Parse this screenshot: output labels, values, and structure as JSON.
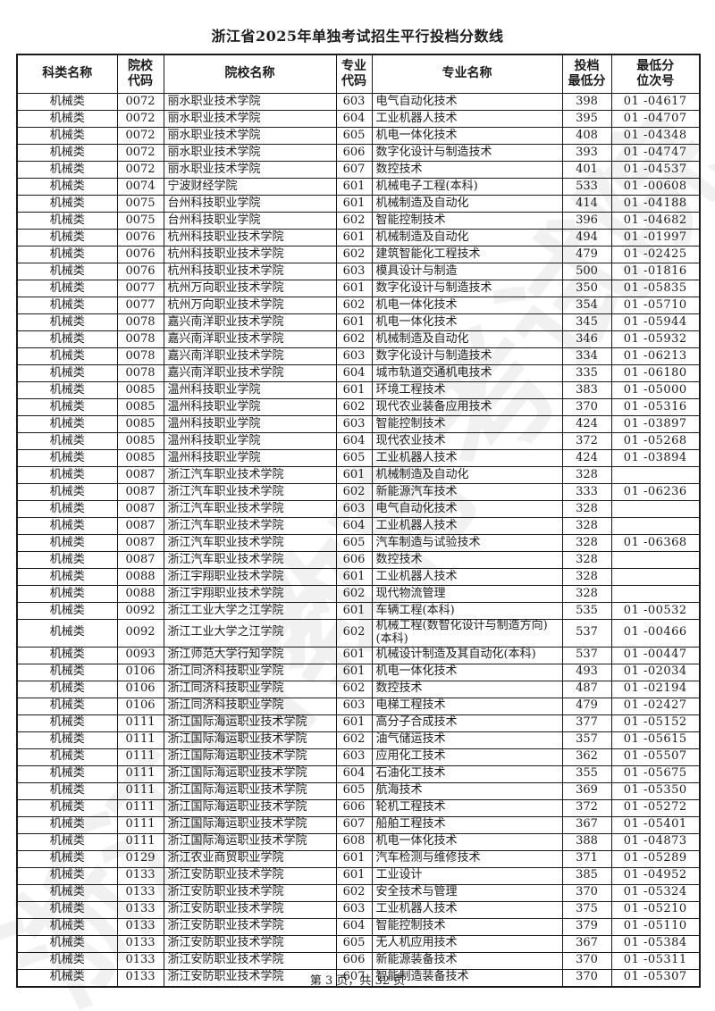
{
  "page": {
    "title": "浙江省2025年单独考试招生平行投档分数线",
    "footer": "第 3 页，共 32 页",
    "watermark": "浙江省教育考试院"
  },
  "table": {
    "headers": [
      "科类名称",
      "院校\n代码",
      "院校名称",
      "专业\n代码",
      "专业名称",
      "投档\n最低分",
      "最低分\n位次号"
    ],
    "rows": [
      [
        "机械类",
        "0072",
        "丽水职业技术学院",
        "603",
        "电气自动化技术",
        "398",
        "01 -04617"
      ],
      [
        "机械类",
        "0072",
        "丽水职业技术学院",
        "604",
        "工业机器人技术",
        "395",
        "01 -04707"
      ],
      [
        "机械类",
        "0072",
        "丽水职业技术学院",
        "605",
        "机电一体化技术",
        "408",
        "01 -04348"
      ],
      [
        "机械类",
        "0072",
        "丽水职业技术学院",
        "606",
        "数字化设计与制造技术",
        "393",
        "01 -04747"
      ],
      [
        "机械类",
        "0072",
        "丽水职业技术学院",
        "607",
        "数控技术",
        "401",
        "01 -04537"
      ],
      [
        "机械类",
        "0074",
        "宁波财经学院",
        "601",
        "机械电子工程(本科)",
        "533",
        "01 -00608"
      ],
      [
        "机械类",
        "0075",
        "台州科技职业学院",
        "601",
        "机械制造及自动化",
        "414",
        "01 -04188"
      ],
      [
        "机械类",
        "0075",
        "台州科技职业学院",
        "602",
        "智能控制技术",
        "396",
        "01 -04682"
      ],
      [
        "机械类",
        "0076",
        "杭州科技职业技术学院",
        "601",
        "机械制造及自动化",
        "494",
        "01 -01997"
      ],
      [
        "机械类",
        "0076",
        "杭州科技职业技术学院",
        "602",
        "建筑智能化工程技术",
        "479",
        "01 -02425"
      ],
      [
        "机械类",
        "0076",
        "杭州科技职业技术学院",
        "603",
        "模具设计与制造",
        "500",
        "01 -01816"
      ],
      [
        "机械类",
        "0077",
        "杭州万向职业技术学院",
        "601",
        "数字化设计与制造技术",
        "350",
        "01 -05835"
      ],
      [
        "机械类",
        "0077",
        "杭州万向职业技术学院",
        "602",
        "机电一体化技术",
        "354",
        "01 -05710"
      ],
      [
        "机械类",
        "0078",
        "嘉兴南洋职业技术学院",
        "601",
        "机电一体化技术",
        "345",
        "01 -05944"
      ],
      [
        "机械类",
        "0078",
        "嘉兴南洋职业技术学院",
        "602",
        "机械制造及自动化",
        "346",
        "01 -05932"
      ],
      [
        "机械类",
        "0078",
        "嘉兴南洋职业技术学院",
        "603",
        "数字化设计与制造技术",
        "334",
        "01 -06213"
      ],
      [
        "机械类",
        "0078",
        "嘉兴南洋职业技术学院",
        "604",
        "城市轨道交通机电技术",
        "335",
        "01 -06180"
      ],
      [
        "机械类",
        "0085",
        "温州科技职业学院",
        "601",
        "环境工程技术",
        "383",
        "01 -05000"
      ],
      [
        "机械类",
        "0085",
        "温州科技职业学院",
        "602",
        "现代农业装备应用技术",
        "370",
        "01 -05316"
      ],
      [
        "机械类",
        "0085",
        "温州科技职业学院",
        "603",
        "智能控制技术",
        "424",
        "01 -03897"
      ],
      [
        "机械类",
        "0085",
        "温州科技职业学院",
        "604",
        "现代农业技术",
        "372",
        "01 -05268"
      ],
      [
        "机械类",
        "0085",
        "温州科技职业学院",
        "605",
        "工业机器人技术",
        "424",
        "01 -03894"
      ],
      [
        "机械类",
        "0087",
        "浙江汽车职业技术学院",
        "601",
        "机械制造及自动化",
        "328",
        ""
      ],
      [
        "机械类",
        "0087",
        "浙江汽车职业技术学院",
        "602",
        "新能源汽车技术",
        "333",
        "01 -06236"
      ],
      [
        "机械类",
        "0087",
        "浙江汽车职业技术学院",
        "603",
        "电气自动化技术",
        "328",
        ""
      ],
      [
        "机械类",
        "0087",
        "浙江汽车职业技术学院",
        "604",
        "工业机器人技术",
        "328",
        ""
      ],
      [
        "机械类",
        "0087",
        "浙江汽车职业技术学院",
        "605",
        "汽车制造与试验技术",
        "328",
        "01 -06368"
      ],
      [
        "机械类",
        "0087",
        "浙江汽车职业技术学院",
        "606",
        "数控技术",
        "328",
        ""
      ],
      [
        "机械类",
        "0088",
        "浙江宇翔职业技术学院",
        "601",
        "工业机器人技术",
        "328",
        ""
      ],
      [
        "机械类",
        "0088",
        "浙江宇翔职业技术学院",
        "602",
        "现代物流管理",
        "328",
        ""
      ],
      [
        "机械类",
        "0092",
        "浙江工业大学之江学院",
        "601",
        "车辆工程(本科)",
        "535",
        "01 -00532"
      ],
      [
        "机械类",
        "0092",
        "浙江工业大学之江学院",
        "602",
        "机械工程(数智化设计与制造方向)(本科)",
        "537",
        "01 -00466"
      ],
      [
        "机械类",
        "0093",
        "浙江师范大学行知学院",
        "601",
        "机械设计制造及其自动化(本科)",
        "537",
        "01 -00447"
      ],
      [
        "机械类",
        "0106",
        "浙江同济科技职业学院",
        "601",
        "机电一体化技术",
        "493",
        "01 -02034"
      ],
      [
        "机械类",
        "0106",
        "浙江同济科技职业学院",
        "602",
        "数控技术",
        "487",
        "01 -02194"
      ],
      [
        "机械类",
        "0106",
        "浙江同济科技职业学院",
        "603",
        "电梯工程技术",
        "479",
        "01 -02427"
      ],
      [
        "机械类",
        "0111",
        "浙江国际海运职业技术学院",
        "601",
        "高分子合成技术",
        "377",
        "01 -05152"
      ],
      [
        "机械类",
        "0111",
        "浙江国际海运职业技术学院",
        "602",
        "油气储运技术",
        "357",
        "01 -05615"
      ],
      [
        "机械类",
        "0111",
        "浙江国际海运职业技术学院",
        "603",
        "应用化工技术",
        "362",
        "01 -05507"
      ],
      [
        "机械类",
        "0111",
        "浙江国际海运职业技术学院",
        "604",
        "石油化工技术",
        "355",
        "01 -05675"
      ],
      [
        "机械类",
        "0111",
        "浙江国际海运职业技术学院",
        "605",
        "航海技术",
        "369",
        "01 -05350"
      ],
      [
        "机械类",
        "0111",
        "浙江国际海运职业技术学院",
        "606",
        "轮机工程技术",
        "372",
        "01 -05272"
      ],
      [
        "机械类",
        "0111",
        "浙江国际海运职业技术学院",
        "607",
        "船舶工程技术",
        "367",
        "01 -05401"
      ],
      [
        "机械类",
        "0111",
        "浙江国际海运职业技术学院",
        "608",
        "机电一体化技术",
        "388",
        "01 -04873"
      ],
      [
        "机械类",
        "0129",
        "浙江农业商贸职业学院",
        "601",
        "汽车检测与维修技术",
        "371",
        "01 -05289"
      ],
      [
        "机械类",
        "0133",
        "浙江安防职业技术学院",
        "601",
        "工业设计",
        "385",
        "01 -04952"
      ],
      [
        "机械类",
        "0133",
        "浙江安防职业技术学院",
        "602",
        "安全技术与管理",
        "370",
        "01 -05324"
      ],
      [
        "机械类",
        "0133",
        "浙江安防职业技术学院",
        "603",
        "工业机器人技术",
        "375",
        "01 -05210"
      ],
      [
        "机械类",
        "0133",
        "浙江安防职业技术学院",
        "604",
        "智能控制技术",
        "379",
        "01 -05110"
      ],
      [
        "机械类",
        "0133",
        "浙江安防职业技术学院",
        "605",
        "无人机应用技术",
        "367",
        "01 -05384"
      ],
      [
        "机械类",
        "0133",
        "浙江安防职业技术学院",
        "606",
        "新能源装备技术",
        "370",
        "01 -05311"
      ],
      [
        "机械类",
        "0133",
        "浙江安防职业技术学院",
        "607",
        "智能制造装备技术",
        "370",
        "01 -05307"
      ]
    ]
  }
}
